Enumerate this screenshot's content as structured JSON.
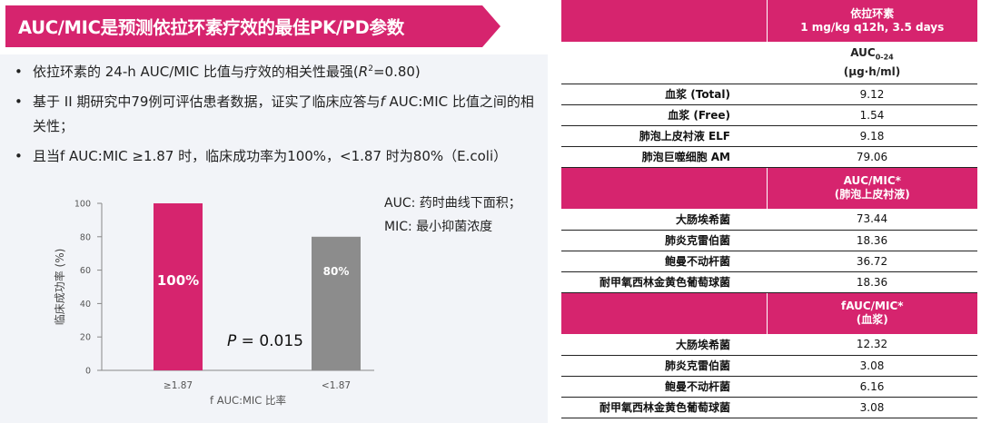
{
  "title": "AUC/MIC是预测依拉环素疗效的最佳PK/PD参数",
  "colors": {
    "accent": "#d6246e",
    "bar_high": "#d6246e",
    "bar_low": "#8c8c8c"
  },
  "bullets": {
    "b1_pre": "依拉环素的 24-h AUC/MIC 比值与疗效的相关性最强(",
    "b1_r": "R",
    "b1_sup": "2",
    "b1_post": "=0.80)",
    "b2_pre": "基于 II 期研究中79例可评估患者数据，证实了临床应答与",
    "b2_f": "f",
    "b2_post": " AUC:MIC 比值之间的相关性；",
    "b3": "且当f AUC:MIC ≥1.87 时，临床成功率为100%，<1.87 时为80%（E.coli）"
  },
  "legend_note": {
    "auc": "AUC: 药时曲线下面积；",
    "mic": "MIC: 最小抑菌浓度"
  },
  "p_value": {
    "label": "P",
    "text": " = 0.015"
  },
  "chart_data": {
    "type": "bar",
    "categories": [
      "≥1.87",
      "<1.87"
    ],
    "values": [
      100,
      80
    ],
    "data_labels": [
      "100%",
      "80%"
    ],
    "xlabel": "f AUC:MIC 比率",
    "ylabel": "临床成功率 (%)",
    "ylim": [
      0,
      100
    ],
    "yticks": [
      0,
      20,
      40,
      60,
      80,
      100
    ],
    "grid": false
  },
  "table": {
    "header1_line1": "依拉环素",
    "header1_line2": "1 mg/kg q12h, 3.5 days",
    "sub1_main": "AUC",
    "sub1_sub": "0-24",
    "sub1_unit": "(μg·h/ml)",
    "section1": [
      {
        "label": "血浆 (Total)",
        "value": "9.12"
      },
      {
        "label": "血浆 (Free)",
        "value": "1.54"
      },
      {
        "label": "肺泡上皮衬液 ELF",
        "value": "9.18"
      },
      {
        "label": "肺泡巨噬细胞 AM",
        "value": "79.06"
      }
    ],
    "header2_line1": "AUC/MIC*",
    "header2_line2": "(肺泡上皮衬液)",
    "section2": [
      {
        "label": "大肠埃希菌",
        "value": "73.44"
      },
      {
        "label": "肺炎克雷伯菌",
        "value": "18.36"
      },
      {
        "label": "鲍曼不动杆菌",
        "value": "36.72"
      },
      {
        "label": "耐甲氧西林金黄色葡萄球菌",
        "value": "18.36"
      }
    ],
    "header3_line1": "fAUC/MIC*",
    "header3_line2": "(血浆)",
    "section3": [
      {
        "label": "大肠埃希菌",
        "value": "12.32"
      },
      {
        "label": "肺炎克雷伯菌",
        "value": "3.08"
      },
      {
        "label": "鲍曼不动杆菌",
        "value": "6.16"
      },
      {
        "label": "耐甲氧西林金黄色葡萄球菌",
        "value": "3.08"
      }
    ]
  }
}
